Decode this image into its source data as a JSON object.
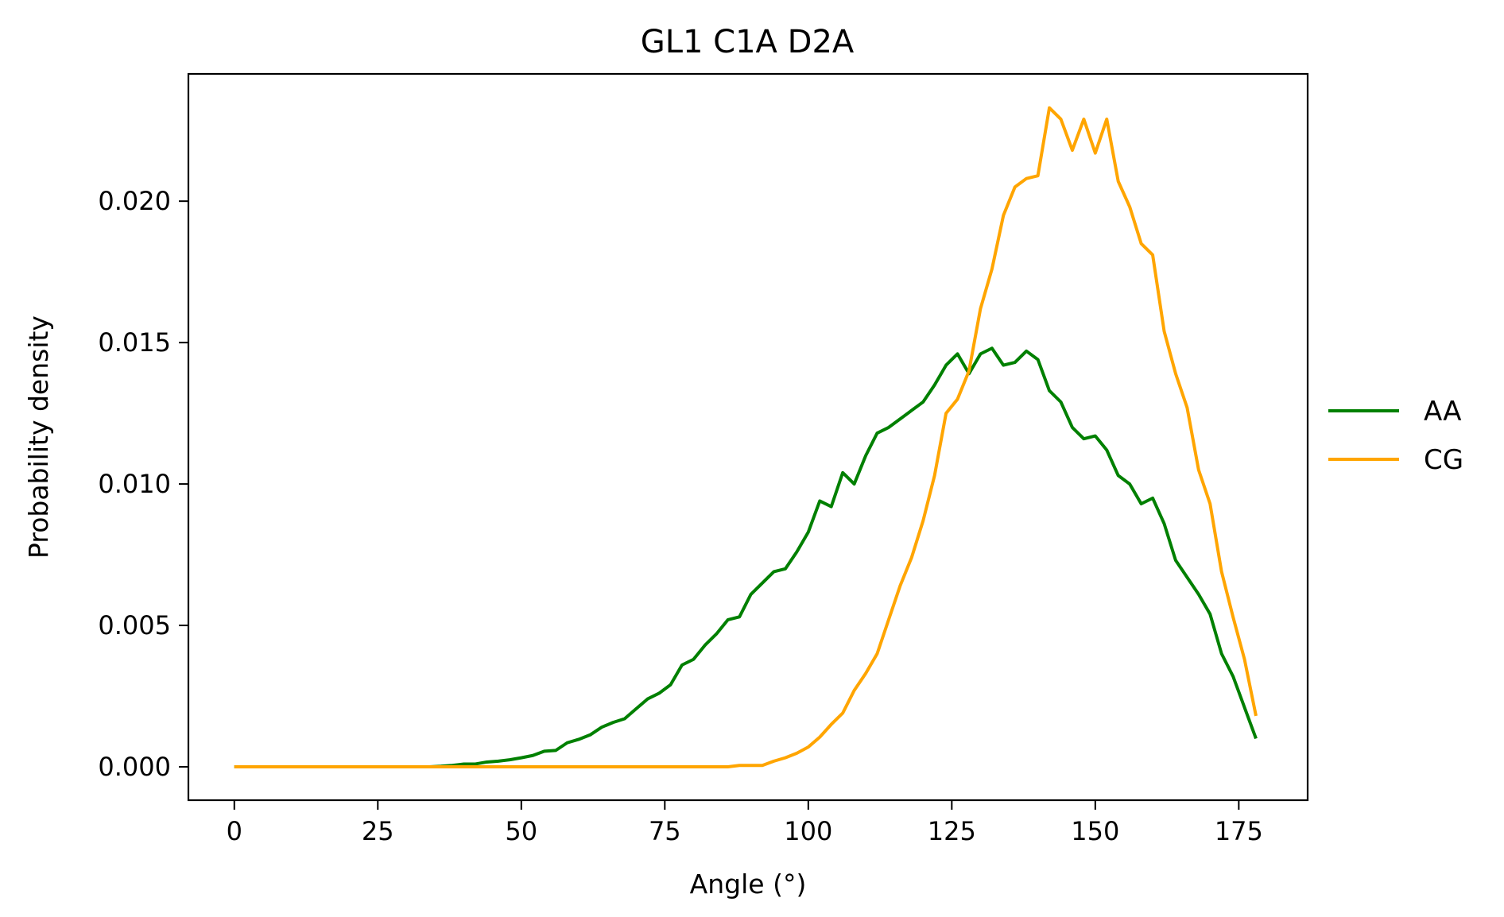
{
  "chart_data": {
    "type": "line",
    "title": "GL1 C1A D2A",
    "xlabel": "Angle (°)",
    "ylabel": "Probability density",
    "xlim": [
      -8,
      187
    ],
    "ylim": [
      -0.00118,
      0.0245
    ],
    "xticks": [
      0,
      25,
      50,
      75,
      100,
      125,
      150,
      175
    ],
    "yticks": [
      0.0,
      0.005,
      0.01,
      0.015,
      0.02
    ],
    "ytick_labels": [
      "0.000",
      "0.005",
      "0.010",
      "0.015",
      "0.020"
    ],
    "grid": false,
    "legend_position": "outside-right",
    "series": [
      {
        "name": "AA",
        "color": "#008000",
        "x": [
          0,
          2,
          4,
          6,
          8,
          10,
          12,
          14,
          16,
          18,
          20,
          22,
          24,
          26,
          28,
          30,
          32,
          34,
          36,
          38,
          40,
          42,
          44,
          46,
          48,
          50,
          52,
          54,
          56,
          58,
          60,
          62,
          64,
          66,
          68,
          70,
          72,
          74,
          76,
          78,
          80,
          82,
          84,
          86,
          88,
          90,
          92,
          94,
          96,
          98,
          100,
          102,
          104,
          106,
          108,
          110,
          112,
          114,
          116,
          118,
          120,
          122,
          124,
          126,
          128,
          130,
          132,
          134,
          136,
          138,
          140,
          142,
          144,
          146,
          148,
          150,
          152,
          154,
          156,
          158,
          160,
          162,
          164,
          166,
          168,
          170,
          172,
          174,
          176,
          178
        ],
        "y": [
          0,
          0,
          0,
          0,
          0,
          0,
          0,
          0,
          0,
          0,
          0,
          0,
          0,
          0,
          0,
          0,
          0,
          0,
          2e-05,
          5e-05,
          0.0001,
          0.0001,
          0.00017,
          0.0002,
          0.00025,
          0.00032,
          0.0004,
          0.00055,
          0.00058,
          0.00085,
          0.00097,
          0.00113,
          0.0014,
          0.00157,
          0.0017,
          0.00205,
          0.0024,
          0.0026,
          0.0029,
          0.0036,
          0.0038,
          0.0043,
          0.0047,
          0.0052,
          0.0053,
          0.0061,
          0.0065,
          0.0069,
          0.007,
          0.0076,
          0.0083,
          0.0094,
          0.0092,
          0.0104,
          0.01,
          0.011,
          0.0118,
          0.012,
          0.0123,
          0.0126,
          0.0129,
          0.0135,
          0.0142,
          0.0146,
          0.0139,
          0.0146,
          0.0148,
          0.0142,
          0.0143,
          0.0147,
          0.0144,
          0.0133,
          0.0129,
          0.012,
          0.0116,
          0.0117,
          0.0112,
          0.0103,
          0.01,
          0.0093,
          0.0095,
          0.0086,
          0.0073,
          0.0067,
          0.0061,
          0.0054,
          0.004,
          0.0032,
          0.0021,
          0.001
        ]
      },
      {
        "name": "CG",
        "color": "#FFA500",
        "x": [
          0,
          2,
          4,
          6,
          8,
          10,
          12,
          14,
          16,
          18,
          20,
          22,
          24,
          26,
          28,
          30,
          32,
          34,
          36,
          38,
          40,
          42,
          44,
          46,
          48,
          50,
          52,
          54,
          56,
          58,
          60,
          62,
          64,
          66,
          68,
          70,
          72,
          74,
          76,
          78,
          80,
          82,
          84,
          86,
          88,
          90,
          92,
          94,
          96,
          98,
          100,
          102,
          104,
          106,
          108,
          110,
          112,
          114,
          116,
          118,
          120,
          122,
          124,
          126,
          128,
          130,
          132,
          134,
          136,
          138,
          140,
          142,
          144,
          146,
          148,
          150,
          152,
          154,
          156,
          158,
          160,
          162,
          164,
          166,
          168,
          170,
          172,
          174,
          176,
          178
        ],
        "y": [
          0,
          0,
          0,
          0,
          0,
          0,
          0,
          0,
          0,
          0,
          0,
          0,
          0,
          0,
          0,
          0,
          0,
          0,
          0,
          0,
          0,
          0,
          0,
          0,
          0,
          0,
          0,
          0,
          0,
          0,
          0,
          0,
          0,
          0,
          0,
          0,
          0,
          0,
          0,
          0,
          0,
          0,
          0,
          0,
          5e-05,
          5e-05,
          5e-05,
          0.0002,
          0.00032,
          0.00048,
          0.0007,
          0.00105,
          0.0015,
          0.0019,
          0.0027,
          0.0033,
          0.004,
          0.0052,
          0.0064,
          0.0074,
          0.0087,
          0.0103,
          0.0125,
          0.013,
          0.014,
          0.0162,
          0.0176,
          0.0195,
          0.0205,
          0.0208,
          0.0209,
          0.0233,
          0.0229,
          0.0218,
          0.0229,
          0.0217,
          0.0229,
          0.0207,
          0.0198,
          0.0185,
          0.0181,
          0.0154,
          0.0139,
          0.0127,
          0.0105,
          0.0093,
          0.0069,
          0.0053,
          0.0038,
          0.0018
        ]
      }
    ]
  }
}
